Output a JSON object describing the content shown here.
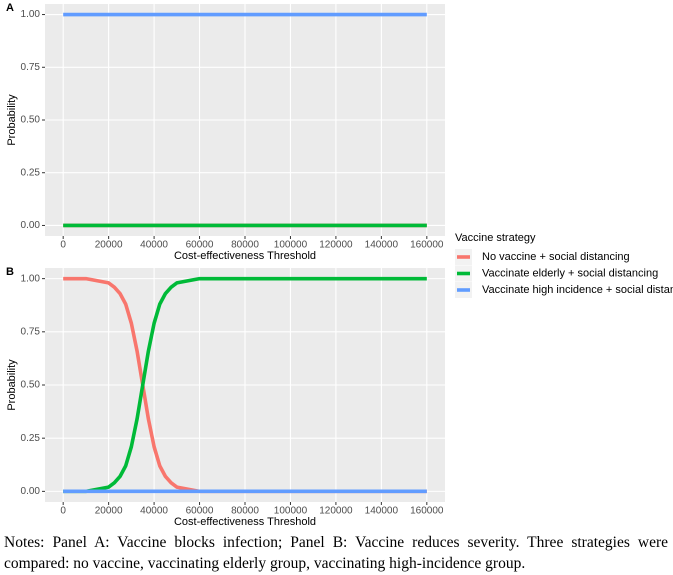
{
  "chart_data": [
    {
      "type": "line",
      "panel": "A",
      "ylabel": "Probability",
      "xlabel": "Cost-effectiveness Threshold",
      "xlim": [
        -8000,
        168000
      ],
      "ylim": [
        -0.05,
        1.05
      ],
      "xticks": [
        0,
        20000,
        40000,
        60000,
        80000,
        100000,
        120000,
        140000,
        160000
      ],
      "yticks": [
        {
          "value": 0,
          "label": "0.00"
        },
        {
          "value": 0.25,
          "label": "0.25"
        },
        {
          "value": 0.5,
          "label": "0.50"
        },
        {
          "value": 0.75,
          "label": "0.75"
        },
        {
          "value": 1,
          "label": "1.00"
        }
      ],
      "grid": true,
      "x": [
        0,
        160000
      ],
      "series": [
        {
          "color": "#F8766D",
          "values": [
            0,
            0
          ]
        },
        {
          "color": "#00BA38",
          "values": [
            0,
            0
          ]
        },
        {
          "color": "#619CFF",
          "values": [
            1,
            1
          ]
        }
      ]
    },
    {
      "type": "line",
      "panel": "B",
      "ylabel": "Probability",
      "xlabel": "Cost-effectiveness Threshold",
      "xlim": [
        -8000,
        168000
      ],
      "ylim": [
        -0.05,
        1.05
      ],
      "xticks": [
        0,
        20000,
        40000,
        60000,
        80000,
        100000,
        120000,
        140000,
        160000
      ],
      "yticks": [
        {
          "value": 0,
          "label": "0.00"
        },
        {
          "value": 0.25,
          "label": "0.25"
        },
        {
          "value": 0.5,
          "label": "0.50"
        },
        {
          "value": 0.75,
          "label": "0.75"
        },
        {
          "value": 1,
          "label": "1.00"
        }
      ],
      "grid": true,
      "legend_title": "Vaccine strategy",
      "x": [
        0,
        5000,
        10000,
        15000,
        20000,
        22500,
        25000,
        27500,
        30000,
        32500,
        35000,
        37500,
        40000,
        42500,
        45000,
        47500,
        50000,
        55000,
        60000,
        70000,
        80000,
        90000,
        100000,
        110000,
        120000,
        130000,
        140000,
        150000,
        160000
      ],
      "series": [
        {
          "name": "No vaccine + social distancing",
          "color": "#F8766D",
          "values": [
            1,
            1,
            1,
            0.99,
            0.98,
            0.96,
            0.93,
            0.88,
            0.79,
            0.66,
            0.5,
            0.34,
            0.21,
            0.12,
            0.07,
            0.04,
            0.02,
            0.01,
            0,
            0,
            0,
            0,
            0,
            0,
            0,
            0,
            0,
            0,
            0
          ]
        },
        {
          "name": "Vaccinate elderly + social distancing",
          "color": "#00BA38",
          "values": [
            0,
            0,
            0,
            0.01,
            0.02,
            0.04,
            0.07,
            0.12,
            0.21,
            0.34,
            0.5,
            0.66,
            0.79,
            0.88,
            0.93,
            0.96,
            0.98,
            0.99,
            1,
            1,
            1,
            1,
            1,
            1,
            1,
            1,
            1,
            1,
            1
          ]
        },
        {
          "name": "Vaccinate high incidence + social distancing",
          "color": "#619CFF",
          "values": [
            0,
            0,
            0,
            0,
            0,
            0,
            0,
            0,
            0,
            0,
            0,
            0,
            0,
            0,
            0,
            0,
            0,
            0,
            0,
            0,
            0,
            0,
            0,
            0,
            0,
            0,
            0,
            0,
            0
          ]
        }
      ]
    }
  ],
  "notes": "Notes: Panel A: Vaccine blocks infection; Panel B: Vaccine reduces severity. Three strategies were compared: no vaccine, vaccinating elderly group, vaccinating high-incidence group."
}
